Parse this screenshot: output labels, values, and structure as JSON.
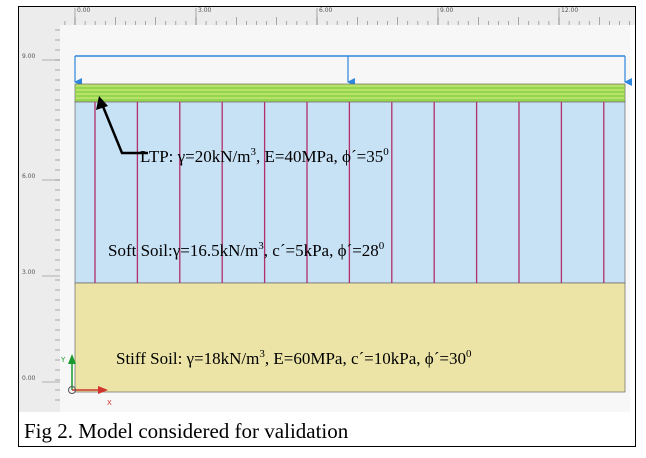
{
  "rulers": {
    "x_labels": [
      "0.00",
      "3.00",
      "6.00",
      "9.00",
      "12.00"
    ],
    "y_labels": [
      "9.00",
      "6.00",
      "3.00",
      "0.00"
    ]
  },
  "labels": {
    "ltp": [
      "LTP: γ=20kN/m",
      "3",
      ", E=40MPa, ϕ´=35",
      "0"
    ],
    "soft_soil": [
      "Soft Soil:γ=16.5kN/m",
      "3",
      ", c´=5kPa, ϕ´=28",
      "0"
    ],
    "stiff_soil": [
      "Stiff Soil: γ=18kN/m",
      "3",
      ", E=60MPa, c´=10kPa, ϕ´=30",
      "0"
    ]
  },
  "axes": {
    "y": "Y",
    "x": "X"
  },
  "caption": "Fig 2. Model considered for validation"
}
